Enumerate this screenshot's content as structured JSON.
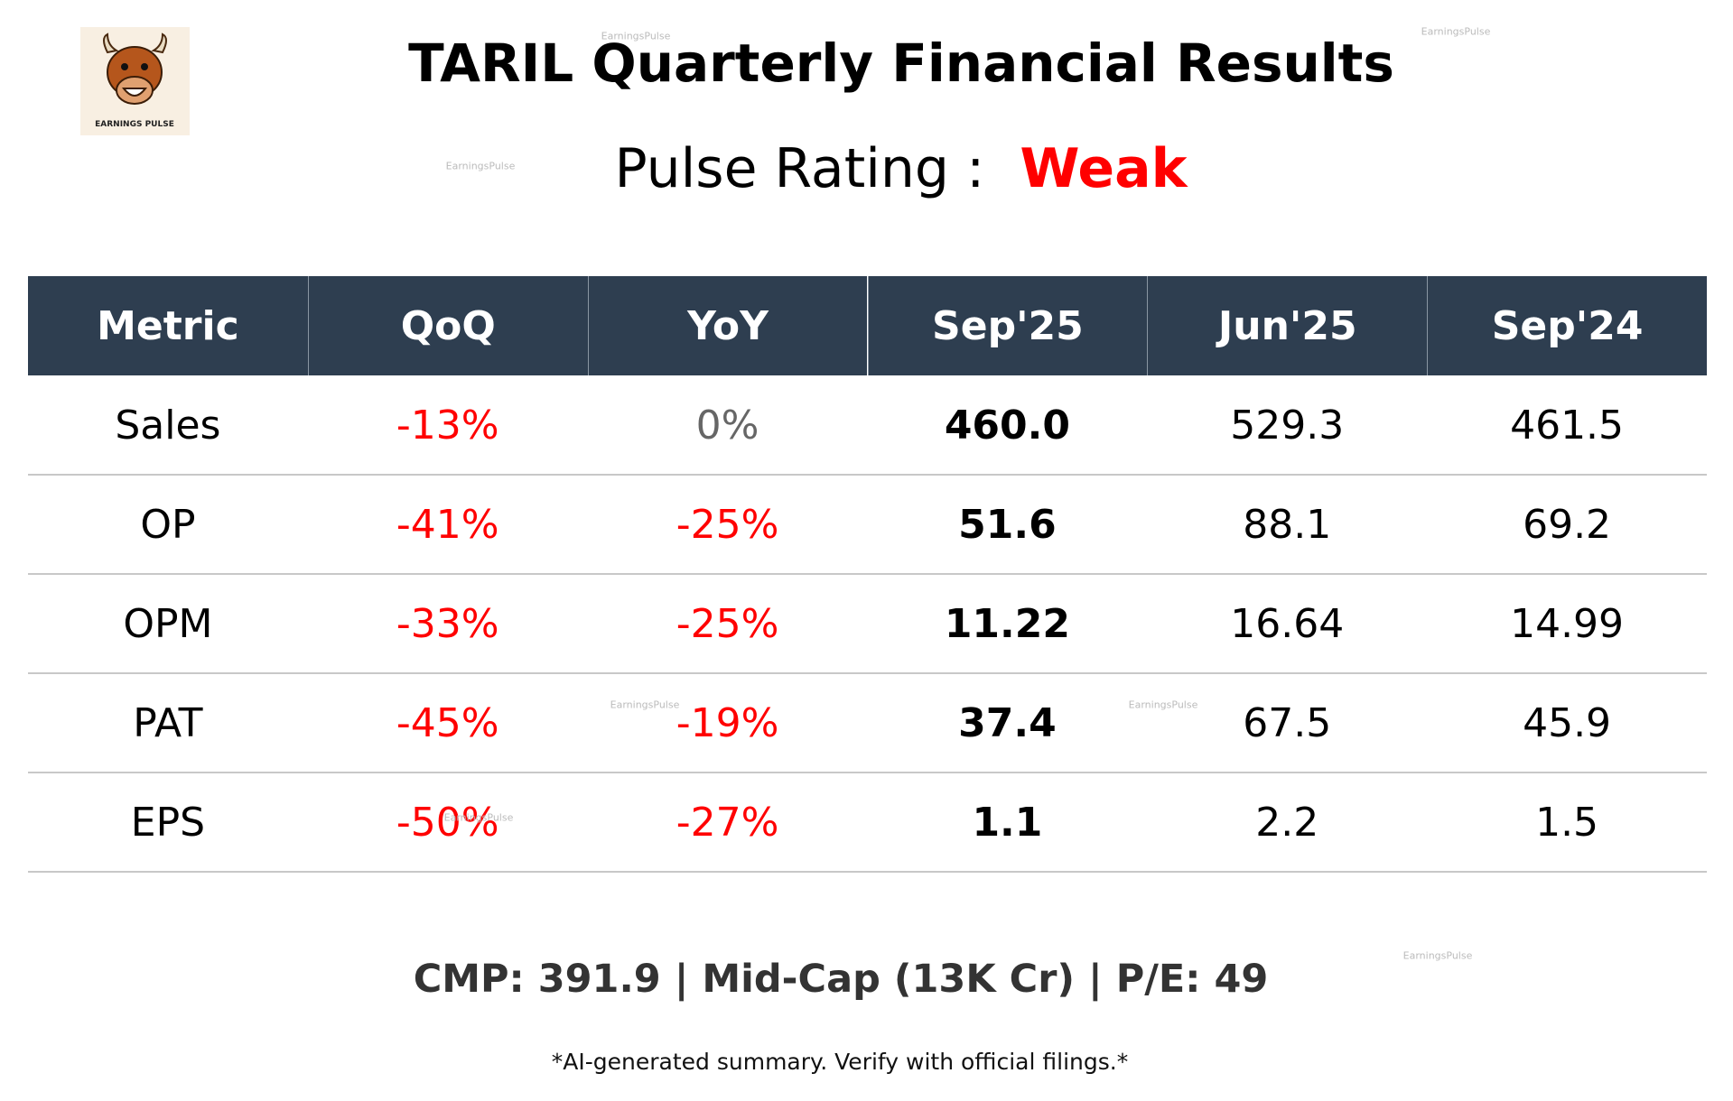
{
  "header": {
    "title": "TARIL Quarterly Financial Results",
    "rating_label": "Pulse Rating :",
    "rating": "Weak",
    "logo_text": "EARNINGS PULSE"
  },
  "watermark": "EarningsPulse",
  "table": {
    "columns": [
      "Metric",
      "QoQ",
      "YoY",
      "Sep'25",
      "Jun'25",
      "Sep'24"
    ],
    "rows": [
      [
        "Sales",
        "-13%",
        "0%",
        "460.0",
        "529.3",
        "461.5"
      ],
      [
        "OP",
        "-41%",
        "-25%",
        "51.6",
        "88.1",
        "69.2"
      ],
      [
        "OPM",
        "-33%",
        "-25%",
        "11.22",
        "16.64",
        "14.99"
      ],
      [
        "PAT",
        "-45%",
        "-19%",
        "37.4",
        "67.5",
        "45.9"
      ],
      [
        "EPS",
        "-50%",
        "-27%",
        "1.1",
        "2.2",
        "1.5"
      ]
    ]
  },
  "footer": {
    "summary": "CMP: 391.9 | Mid-Cap (13K Cr) | P/E: 49",
    "disclaimer": "*AI-generated summary. Verify with official filings.*"
  }
}
